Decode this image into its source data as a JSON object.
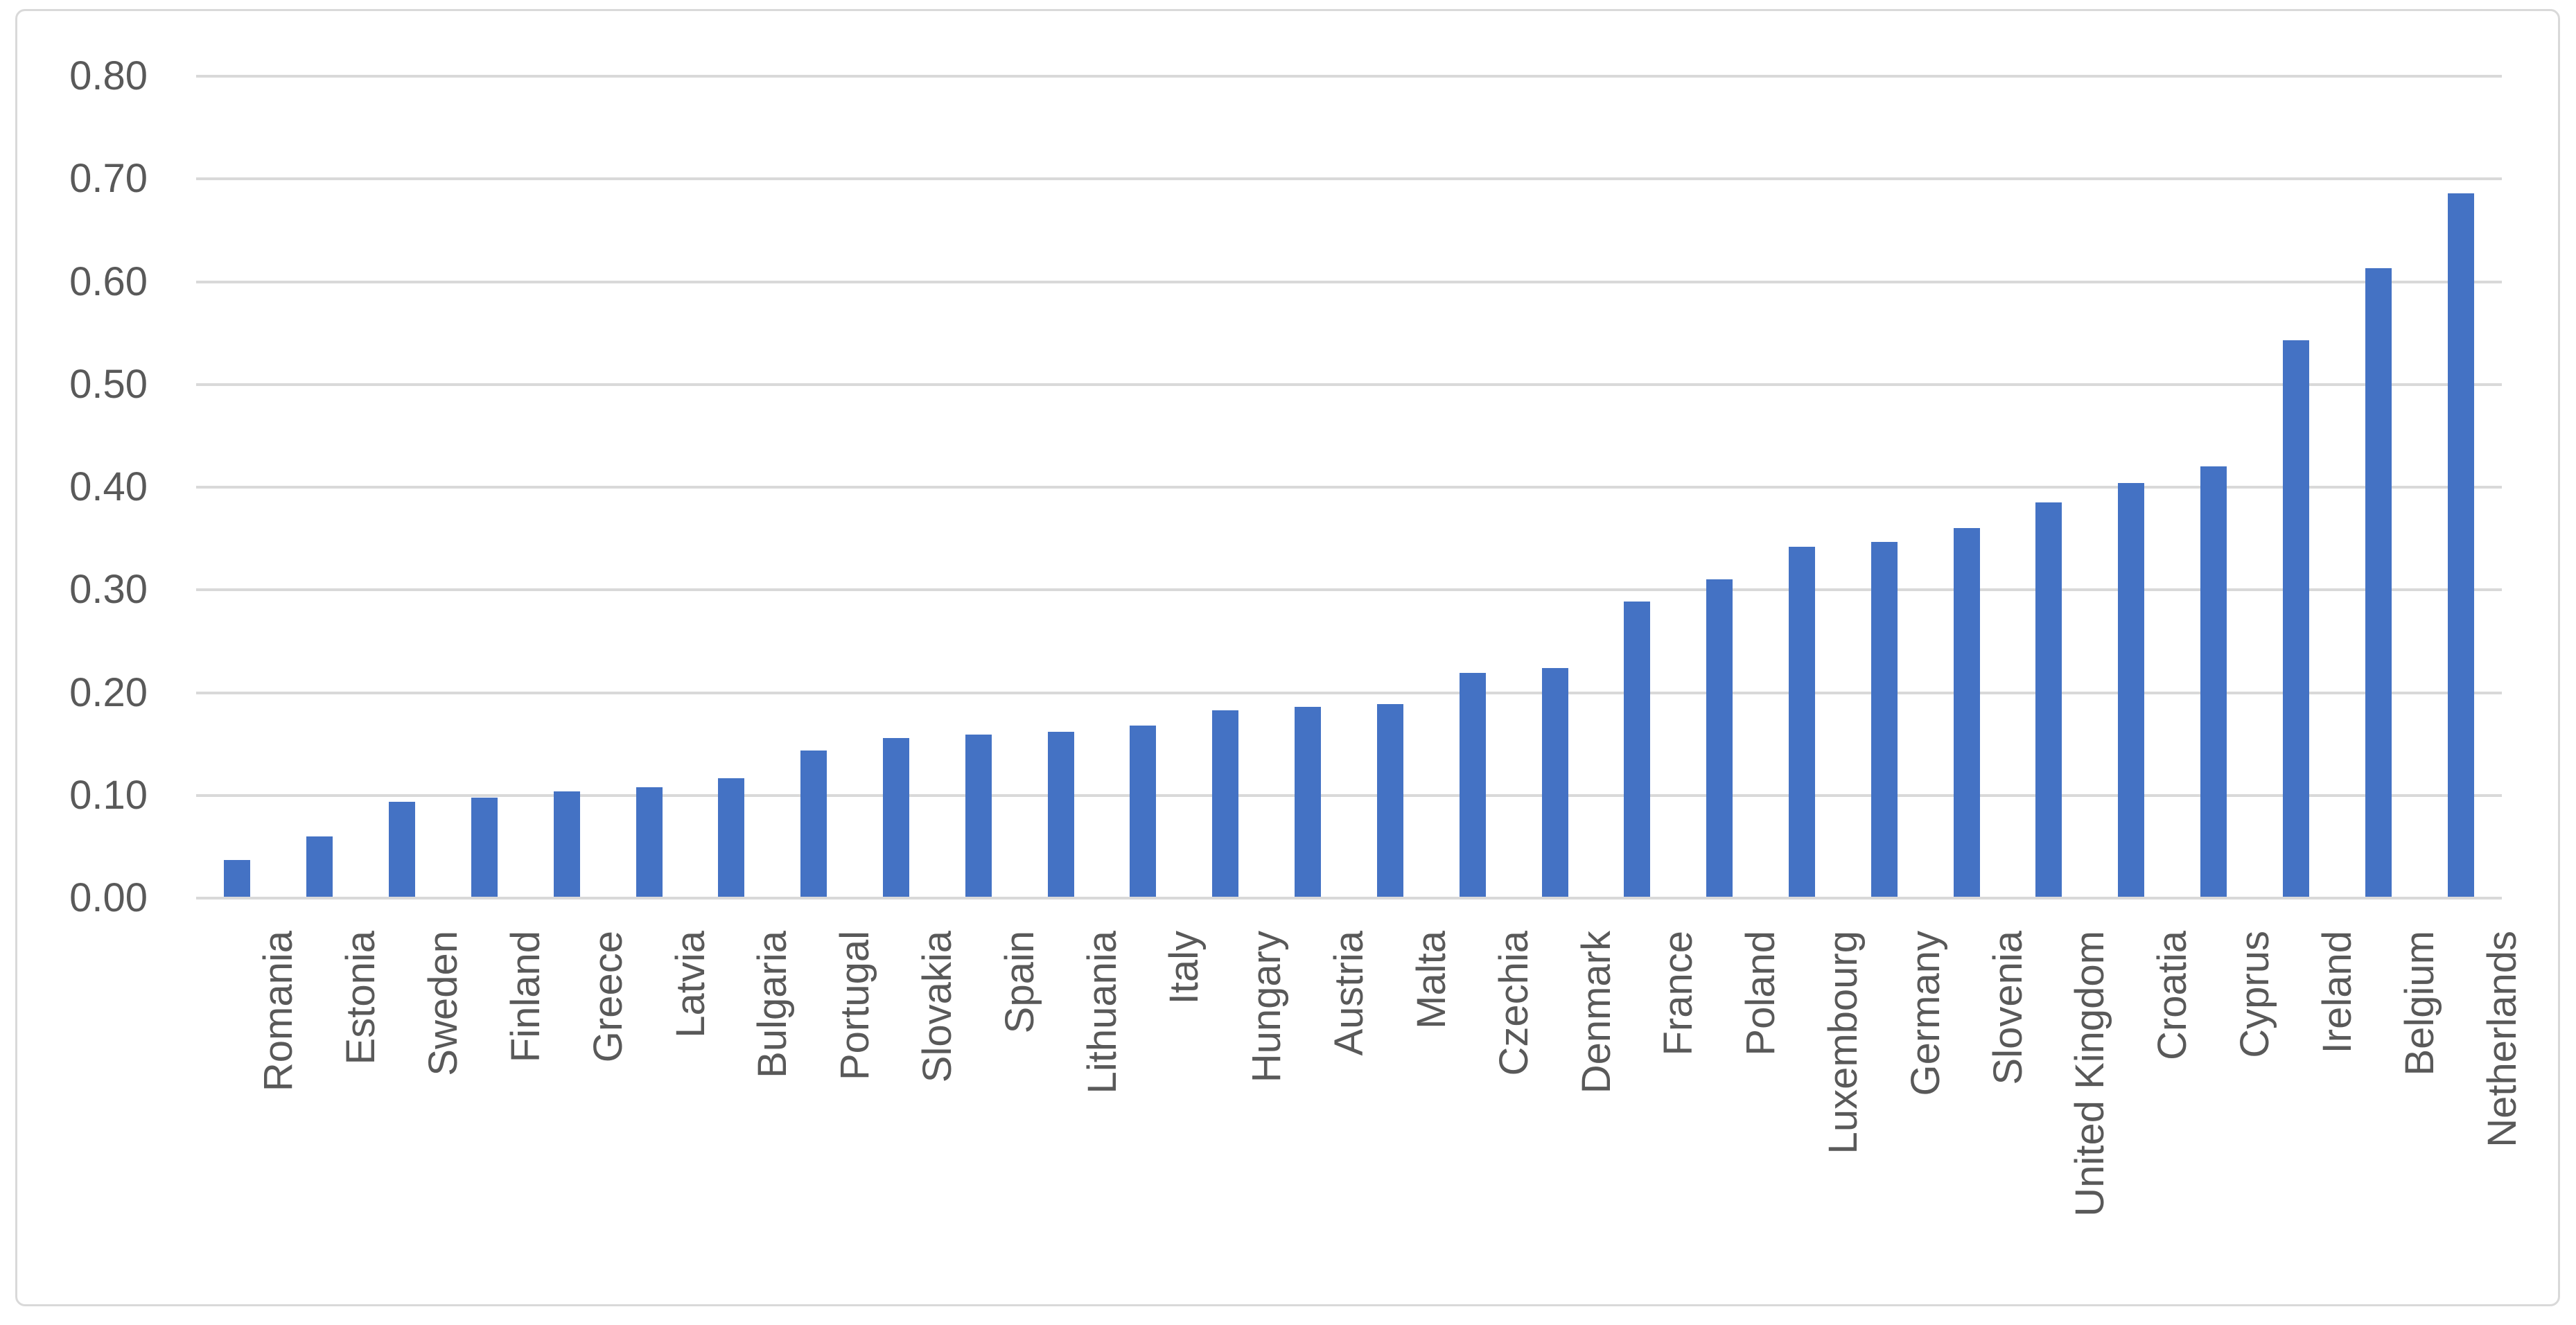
{
  "chart_data": {
    "type": "bar",
    "title": "",
    "legend": "none",
    "grid": "horizontal",
    "categories": [
      "Romania",
      "Estonia",
      "Sweden",
      "Finland",
      "Greece",
      "Latvia",
      "Bulgaria",
      "Portugal",
      "Slovakia",
      "Spain",
      "Lithuania",
      "Italy",
      "Hungary",
      "Austria",
      "Malta",
      "Czechia",
      "Denmark",
      "France",
      "Poland",
      "Luxembourg",
      "Germany",
      "Slovenia",
      "United Kingdom",
      "Croatia",
      "Cyprus",
      "Ireland",
      "Belgium",
      "Netherlands"
    ],
    "values": [
      0.037,
      0.06,
      0.094,
      0.098,
      0.104,
      0.108,
      0.117,
      0.144,
      0.156,
      0.159,
      0.162,
      0.168,
      0.183,
      0.186,
      0.189,
      0.219,
      0.224,
      0.289,
      0.31,
      0.342,
      0.347,
      0.36,
      0.385,
      0.404,
      0.42,
      0.543,
      0.613,
      0.686
    ],
    "xlabel": "",
    "ylabel": "",
    "ylim": [
      0,
      0.8
    ],
    "ytick_step": 0.1,
    "yticks": [
      "0.00",
      "0.10",
      "0.20",
      "0.30",
      "0.40",
      "0.50",
      "0.60",
      "0.70",
      "0.80"
    ],
    "colors": {
      "bar": "#4472C4",
      "gridline": "#D9D9D9",
      "axis_line": "#D9D9D9",
      "tick_label": "#595959",
      "frame_border": "#D9D9D9",
      "background": "#FFFFFF"
    }
  }
}
